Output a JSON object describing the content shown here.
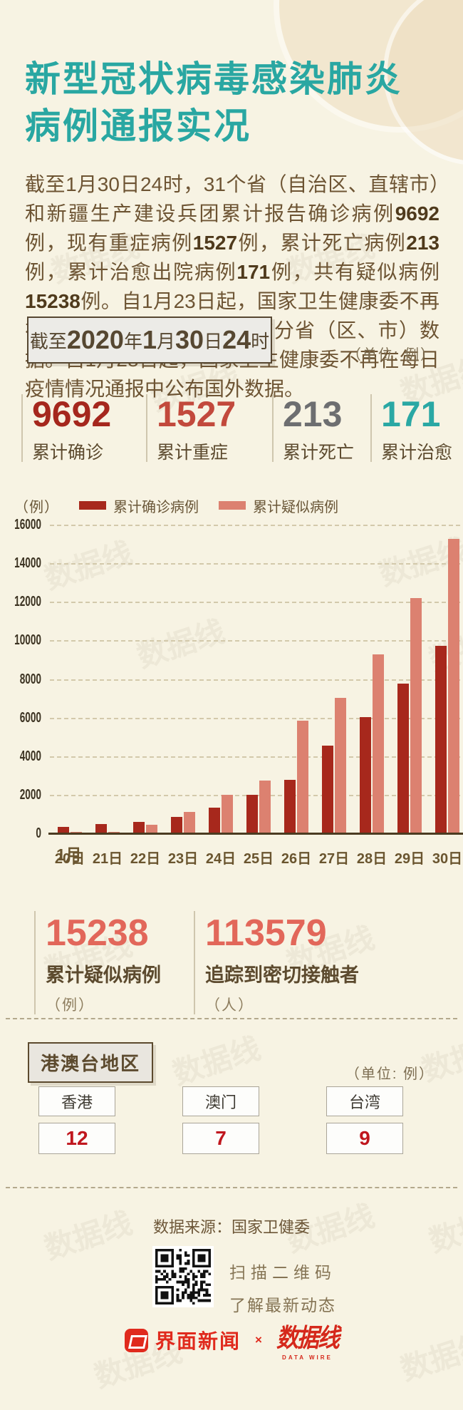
{
  "page": {
    "title_line1": "新型冠状病毒感染肺炎",
    "title_line2": "病例通报实况"
  },
  "intro": {
    "segments": [
      {
        "t": "截至1月30日24时，31个省（自治区、直辖市）和新疆生产建设兵团累计报告确诊病例"
      },
      {
        "t": "9692",
        "b": true
      },
      {
        "t": "例，现有重症病例"
      },
      {
        "t": "1527",
        "b": true
      },
      {
        "t": "例，累计死亡病例"
      },
      {
        "t": "213",
        "b": true
      },
      {
        "t": "例，累计治愈出院病例"
      },
      {
        "t": "171",
        "b": true
      },
      {
        "t": "例，共有疑似病例"
      },
      {
        "t": "15238",
        "b": true
      },
      {
        "t": "例。自1月23日起，国家卫生健康委不再在每日疫情情况通报中公布分省（区、市）数据。自1月28日起，国家卫生健康委不再在每日疫情情况通报中公布国外数据。"
      }
    ]
  },
  "banner": {
    "segments": [
      {
        "t": "截至"
      },
      {
        "t": "2020",
        "b": true
      },
      {
        "t": "年"
      },
      {
        "t": "1",
        "b": true
      },
      {
        "t": "月"
      },
      {
        "t": "30",
        "b": true
      },
      {
        "t": "日"
      },
      {
        "t": "24",
        "b": true
      },
      {
        "t": "时"
      }
    ],
    "unit_note": "（单位: 例）"
  },
  "summary_stats": [
    {
      "value": "9692",
      "label": "累计确诊",
      "color": "#a5271d"
    },
    {
      "value": "1527",
      "label": "累计重症",
      "color": "#c2493c"
    },
    {
      "value": "213",
      "label": "累计死亡",
      "color": "#6d6e70"
    },
    {
      "value": "171",
      "label": "累计治愈",
      "color": "#2aa8a4"
    }
  ],
  "chart_data": {
    "type": "bar",
    "title": "",
    "unit_label": "（例）",
    "month_label": "1月",
    "categories": [
      "20日",
      "21日",
      "22日",
      "23日",
      "24日",
      "25日",
      "26日",
      "27日",
      "28日",
      "29日",
      "30日"
    ],
    "series": [
      {
        "name": "累计确诊病例",
        "color": "#a7281c",
        "values": [
          291,
          440,
          571,
          830,
          1287,
          1975,
          2744,
          4515,
          5974,
          7711,
          9692
        ]
      },
      {
        "name": "累计疑似病例",
        "color": "#dc8170",
        "values": [
          54,
          37,
          393,
          1072,
          1965,
          2684,
          5794,
          6973,
          9239,
          12167,
          15238
        ]
      }
    ],
    "ylim": [
      0,
      16000
    ],
    "ytick_step": 2000,
    "grid": "dashed-horizontal",
    "legend_position": "top"
  },
  "secondary_stats": [
    {
      "value": "15238",
      "label": "累计疑似病例",
      "unit": "（例）"
    },
    {
      "value": "113579",
      "label": "追踪到密切接触者",
      "unit": "（人）"
    }
  ],
  "regions": {
    "header": "港澳台地区",
    "unit_note": "（单位: 例）",
    "items": [
      {
        "name": "香港",
        "value": "12"
      },
      {
        "name": "澳门",
        "value": "7"
      },
      {
        "name": "台湾",
        "value": "9"
      }
    ]
  },
  "footer": {
    "source": "数据来源：国家卫健委",
    "qr_caption_line1": "扫描二维码",
    "qr_caption_line2": "了解最新动态",
    "logo_jiemian": "界面新闻",
    "logo_separator": "×",
    "logo_datawire": "数据线",
    "logo_datawire_sub": "DATA WIRE"
  },
  "watermark": {
    "text": "数据线"
  },
  "colors": {
    "background": "#f7f3e3",
    "title_teal": "#29a7a2",
    "body_brown": "#6d5433",
    "confirmed_red": "#a7281c",
    "suspected_salmon": "#dc8170",
    "coral": "#e2675a",
    "badge_red": "#c0171e",
    "logo_red": "#e02a1d"
  }
}
